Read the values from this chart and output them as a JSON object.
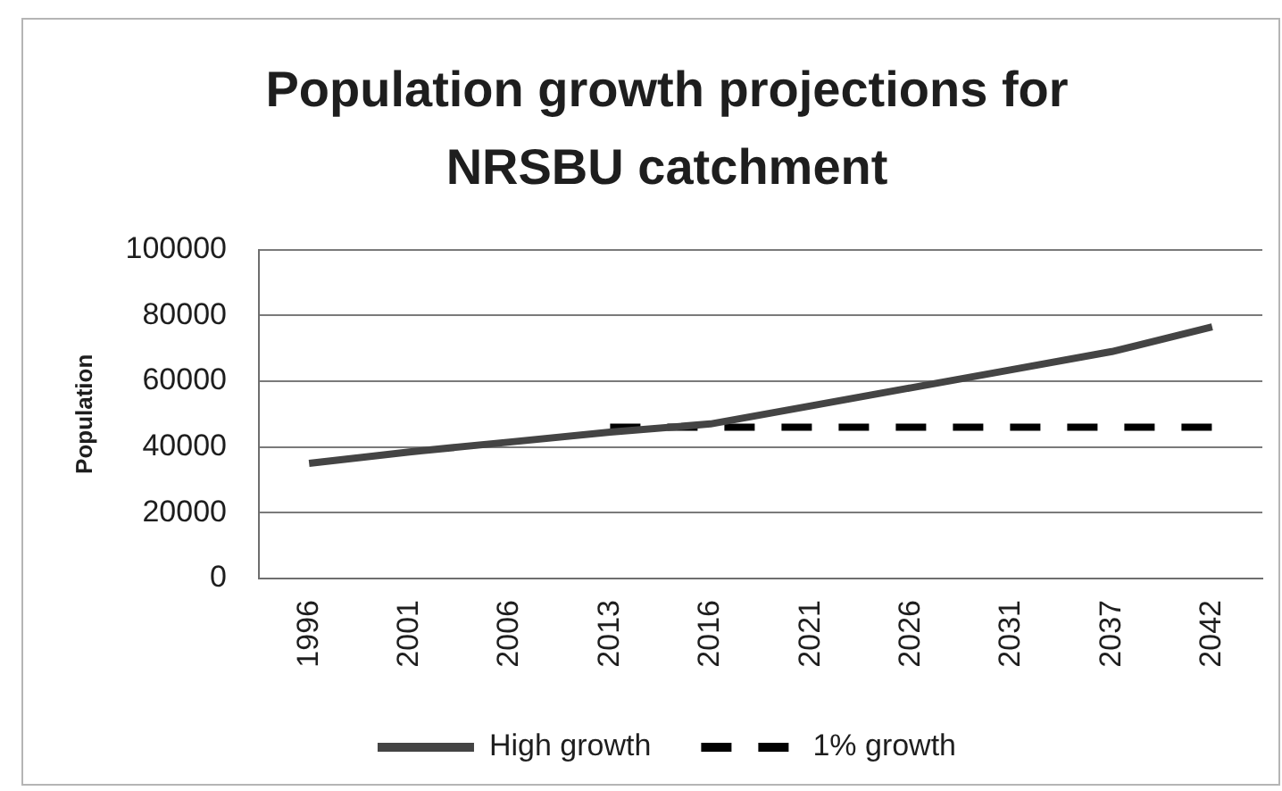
{
  "chart_data": {
    "type": "line",
    "title": "Population growth projections for NRSBU catchment",
    "ylabel": "Population",
    "categories": [
      "1996",
      "2001",
      "2006",
      "2013",
      "2016",
      "2021",
      "2026",
      "2031",
      "2037",
      "2042"
    ],
    "series": [
      {
        "name": "High growth",
        "color": "#444444",
        "line_style": "solid",
        "values": [
          35000,
          38500,
          41500,
          44500,
          47000,
          52500,
          58000,
          63500,
          69000,
          76500
        ]
      },
      {
        "name": "1% growth",
        "color": "#000000",
        "line_style": "dashed",
        "values": [
          null,
          null,
          null,
          46000,
          46000,
          46000,
          46000,
          46000,
          46000,
          46000
        ]
      }
    ],
    "ylim": [
      0,
      100000
    ],
    "yticks": [
      0,
      20000,
      40000,
      60000,
      80000,
      100000
    ],
    "grid": "y",
    "legend": "bottom",
    "marker": "none"
  }
}
